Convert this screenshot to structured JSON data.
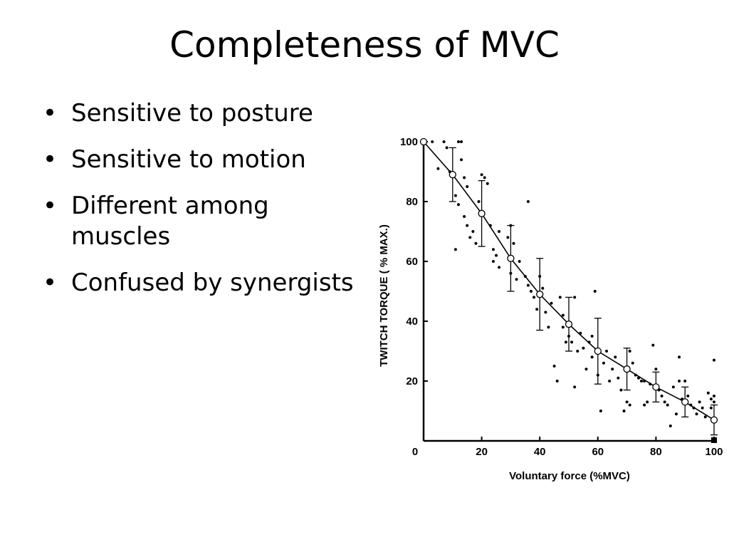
{
  "slide": {
    "title": "Completeness of MVC",
    "bullets": [
      "Sensitive to posture",
      "Sensitive to motion",
      "Different among muscles",
      "Confused by synergists"
    ]
  },
  "chart_data": {
    "type": "scatter",
    "xlabel": "Voluntary force (%MVC)",
    "ylabel": "TWITCH  TORQUE  ( % MAX.)",
    "xlim": [
      0,
      100
    ],
    "ylim": [
      0,
      100
    ],
    "x_ticks": [
      "0",
      "20",
      "40",
      "60",
      "80",
      "100"
    ],
    "y_ticks": [
      "20",
      "40",
      "60",
      "80",
      "100"
    ],
    "grid": false,
    "series": [
      {
        "kind": "mean_line_with_error_bars",
        "x": [
          0,
          10,
          20,
          30,
          40,
          50,
          60,
          70,
          80,
          90,
          100
        ],
        "y": [
          100,
          89,
          76,
          61,
          49,
          39,
          30,
          24,
          18,
          13,
          7
        ],
        "err": [
          0,
          9,
          11,
          11,
          12,
          9,
          11,
          7,
          5,
          5,
          5
        ]
      },
      {
        "kind": "individual_points",
        "points": [
          [
            3,
            100
          ],
          [
            7,
            100
          ],
          [
            8,
            98
          ],
          [
            12,
            100
          ],
          [
            13,
            100
          ],
          [
            5,
            91
          ],
          [
            9,
            90
          ],
          [
            13,
            94
          ],
          [
            14,
            88
          ],
          [
            15,
            85
          ],
          [
            11,
            82
          ],
          [
            12,
            79
          ],
          [
            14,
            75
          ],
          [
            15,
            72
          ],
          [
            11,
            64
          ],
          [
            16,
            68
          ],
          [
            17,
            70
          ],
          [
            18,
            66
          ],
          [
            19,
            80
          ],
          [
            20,
            89
          ],
          [
            21,
            88
          ],
          [
            22,
            86
          ],
          [
            23,
            72
          ],
          [
            24,
            64
          ],
          [
            25,
            62
          ],
          [
            24,
            60
          ],
          [
            26,
            58
          ],
          [
            26,
            70
          ],
          [
            29,
            68
          ],
          [
            30,
            72
          ],
          [
            31,
            66
          ],
          [
            30,
            56
          ],
          [
            32,
            54
          ],
          [
            33,
            60
          ],
          [
            35,
            55
          ],
          [
            36,
            52
          ],
          [
            36,
            80
          ],
          [
            37,
            50
          ],
          [
            38,
            48
          ],
          [
            39,
            44
          ],
          [
            40,
            55
          ],
          [
            41,
            51
          ],
          [
            42,
            43
          ],
          [
            43,
            38
          ],
          [
            44,
            46
          ],
          [
            45,
            25
          ],
          [
            46,
            20
          ],
          [
            47,
            48
          ],
          [
            48,
            42
          ],
          [
            48,
            38
          ],
          [
            49,
            33
          ],
          [
            50,
            35
          ],
          [
            51,
            33
          ],
          [
            52,
            48
          ],
          [
            52,
            18
          ],
          [
            53,
            30
          ],
          [
            54,
            36
          ],
          [
            55,
            31
          ],
          [
            56,
            24
          ],
          [
            57,
            33
          ],
          [
            58,
            35
          ],
          [
            58,
            28
          ],
          [
            59,
            50
          ],
          [
            60,
            22
          ],
          [
            61,
            10
          ],
          [
            62,
            26
          ],
          [
            63,
            30
          ],
          [
            64,
            20
          ],
          [
            65,
            24
          ],
          [
            66,
            28
          ],
          [
            67,
            21
          ],
          [
            68,
            17
          ],
          [
            69,
            10
          ],
          [
            70,
            13
          ],
          [
            71,
            12
          ],
          [
            71,
            30
          ],
          [
            72,
            26
          ],
          [
            73,
            22
          ],
          [
            74,
            21
          ],
          [
            75,
            20
          ],
          [
            76,
            20
          ],
          [
            76,
            12
          ],
          [
            77,
            13
          ],
          [
            78,
            19
          ],
          [
            79,
            32
          ],
          [
            80,
            24
          ],
          [
            81,
            17
          ],
          [
            82,
            15
          ],
          [
            83,
            13
          ],
          [
            84,
            12
          ],
          [
            85,
            5
          ],
          [
            86,
            18
          ],
          [
            87,
            9
          ],
          [
            88,
            20
          ],
          [
            88,
            28
          ],
          [
            89,
            14
          ],
          [
            90,
            20
          ],
          [
            91,
            15
          ],
          [
            92,
            12
          ],
          [
            93,
            11
          ],
          [
            94,
            9
          ],
          [
            95,
            13
          ],
          [
            96,
            11
          ],
          [
            97,
            8
          ],
          [
            98,
            16
          ],
          [
            99,
            11
          ],
          [
            99,
            14
          ],
          [
            100,
            15
          ],
          [
            100,
            13
          ],
          [
            100,
            27
          ],
          [
            100,
            0
          ]
        ]
      }
    ]
  }
}
